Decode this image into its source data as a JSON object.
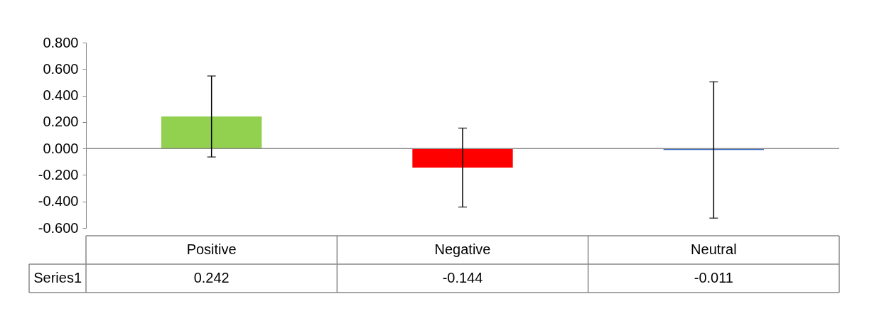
{
  "chart_data": {
    "type": "bar",
    "categories": [
      "Positive",
      "Negative",
      "Neutral"
    ],
    "series": [
      {
        "name": "Series1",
        "values": [
          0.242,
          -0.144,
          -0.011
        ],
        "errors": [
          0.306,
          0.298,
          0.515
        ]
      }
    ],
    "colors": [
      "#92d050",
      "#ff0000",
      "#4472c4"
    ],
    "ylim": [
      -0.6,
      0.8
    ],
    "yticks": [
      {
        "value": -0.6,
        "label": "-0.600"
      },
      {
        "value": -0.4,
        "label": "-0.400"
      },
      {
        "value": -0.2,
        "label": "-0.200"
      },
      {
        "value": 0,
        "label": "0.000"
      },
      {
        "value": 0.2,
        "label": "0.200"
      },
      {
        "value": 0.4,
        "label": "0.400"
      },
      {
        "value": 0.6,
        "label": "0.600"
      },
      {
        "value": 0.8,
        "label": "0.800"
      }
    ],
    "ref_lines": [
      {
        "axis": "y",
        "value": 0,
        "color": "#888888"
      }
    ],
    "grid": false,
    "data_labels": true
  }
}
